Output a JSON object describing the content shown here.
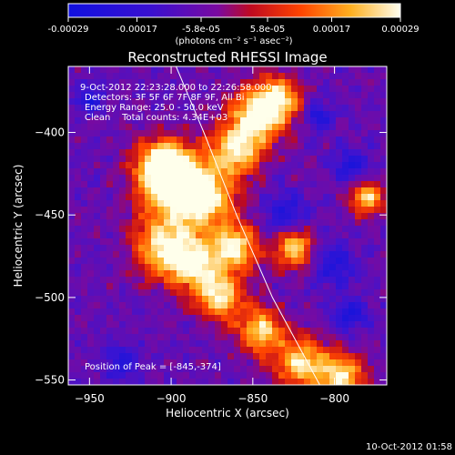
{
  "chart_data": {
    "type": "heatmap",
    "title": "Reconstructed RHESSI Image",
    "xlabel": "Heliocentric X (arcsec)",
    "ylabel": "Heliocentric Y (arcsec)",
    "xlim": [
      -963,
      -768
    ],
    "ylim": [
      -553,
      -360
    ],
    "xticks": [
      -950,
      -900,
      -850,
      -800
    ],
    "yticks": [
      -550,
      -500,
      -450,
      -400
    ],
    "colorbar": {
      "min": -0.00029,
      "max": 0.00029,
      "tick_values": [
        -0.00029,
        -0.00017,
        -5.8e-05,
        5.8e-05,
        0.00017,
        0.00029
      ],
      "tick_labels": [
        "-0.00029",
        "-0.00017",
        "-5.8e-05",
        "5.8e-05",
        "0.00017",
        "0.00029"
      ],
      "unit_label": "(photons cm⁻² s⁻¹ asec⁻²)"
    },
    "info_lines": [
      "9-Oct-2012 22:23:28.000 to 22:26:58.000",
      "Detectors: 3F 5F 6F 7F 8F 9F, All Bi",
      "Energy Range: 25.0 - 50.0 keV",
      "Clean    Total counts: 4.34E+03"
    ],
    "peak_label": "Position of Peak = [-845,-374]",
    "limb_curve": [
      [
        -897,
        -360
      ],
      [
        -880,
        -400
      ],
      [
        -860,
        -450
      ],
      [
        -838,
        -500
      ],
      [
        -809,
        -553
      ]
    ],
    "grid": false,
    "legend": "none"
  },
  "footer": {
    "timestamp": "10-Oct-2012 01:58"
  },
  "colors": {
    "background": "#000000",
    "text": "#ffffff"
  }
}
